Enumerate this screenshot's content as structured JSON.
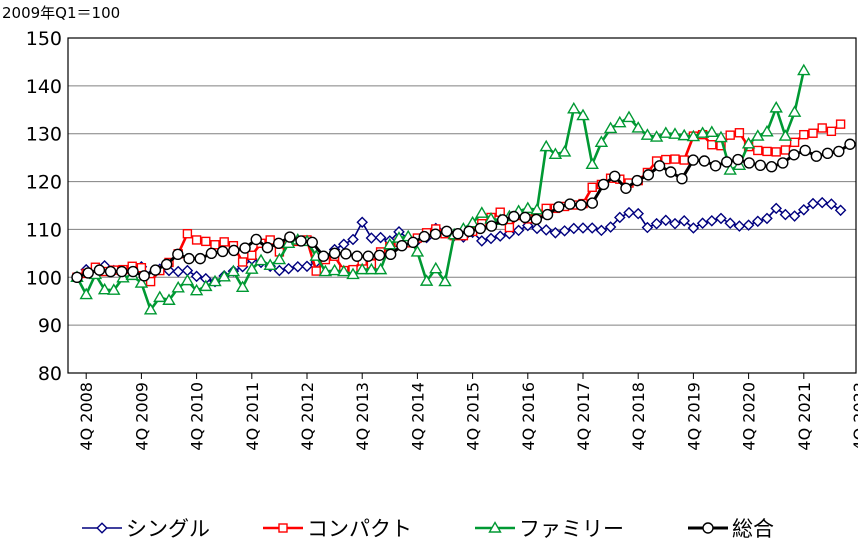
{
  "chart_data": {
    "type": "line",
    "unit_label": "2009年Q1＝100",
    "ylim": [
      80,
      150
    ],
    "yticks": [
      80,
      90,
      100,
      110,
      120,
      130,
      140,
      150
    ],
    "x_tick_labels": [
      "4Q 2008",
      "4Q 2009",
      "4Q 2010",
      "4Q 2011",
      "4Q 2012",
      "4Q 2013",
      "4Q 2014",
      "4Q 2015",
      "4Q 2016",
      "4Q 2017",
      "4Q 2018",
      "4Q 2019",
      "4Q 2020",
      "4Q 2021",
      "4Q 2022"
    ],
    "grid": "horizontal",
    "legend_position": "bottom",
    "series": [
      {
        "name": "シングル",
        "color": "#00007f",
        "marker": "diamond",
        "values": [
          100,
          101.6,
          101.3,
          102.4,
          101.4,
          101.2,
          101.6,
          102.2,
          100.4,
          101.7,
          101.4,
          101.2,
          101.4,
          100.2,
          99.7,
          99.1,
          100.3,
          101.3,
          102.2,
          103.8,
          103.1,
          102.3,
          101.4,
          101.8,
          102.2,
          102.3,
          103.2,
          104.3,
          105.8,
          106.9,
          107.9,
          111.5,
          108.2,
          108.3,
          107.6,
          109.5,
          108.1,
          107.7,
          108.3,
          110.2,
          109.5,
          108.7,
          108.4,
          109.4,
          107.6,
          108.1,
          108.6,
          109.1,
          109.8,
          110.8,
          110.2,
          109.9,
          109.3,
          109.7,
          110.2,
          110.3,
          110.3,
          109.8,
          110.5,
          112.5,
          113.5,
          113.3,
          110.4,
          111.2,
          111.9,
          111.2,
          111.8,
          110.3,
          111.3,
          111.8,
          112.3,
          111.3,
          110.7,
          110.9,
          111.7,
          112.3,
          114.4,
          113.1,
          112.8,
          114.1,
          115.4,
          115.6,
          115.3,
          114.0
        ]
      },
      {
        "name": "コンパクト",
        "color": "#ff0000",
        "marker": "square",
        "values": [
          100,
          100.8,
          102.1,
          101.2,
          101.5,
          101.6,
          102.3,
          102,
          99.1,
          101.4,
          103.1,
          104.9,
          109.1,
          107.8,
          107.5,
          106.8,
          107.4,
          106.6,
          103.2,
          104.6,
          107.1,
          107.8,
          105.3,
          107.1,
          107.5,
          107.8,
          101.3,
          103.7,
          104.4,
          101.4,
          101.6,
          103.4,
          102.8,
          105.3,
          106.4,
          107.3,
          107.2,
          108.2,
          109.3,
          110.1,
          109.1,
          108.7,
          108.7,
          109.6,
          111.2,
          112.5,
          113.6,
          110.4,
          112.9,
          112.2,
          113.2,
          114.4,
          114.4,
          114.8,
          115.1,
          115.4,
          118.8,
          119.4,
          120.7,
          120.5,
          119.7,
          120.2,
          121.9,
          124.3,
          124.6,
          124.7,
          124.5,
          129.5,
          129.8,
          127.7,
          127.5,
          129.7,
          130.2,
          127.3,
          126.5,
          126.3,
          126.2,
          126.6,
          128.2,
          129.8,
          130.1,
          131.2,
          130.5,
          132.0
        ]
      },
      {
        "name": "ファミリー",
        "color": "#009933",
        "marker": "triangle",
        "values": [
          100,
          96.4,
          100.6,
          97.4,
          97.3,
          99.9,
          100.4,
          98.8,
          93.2,
          95.8,
          95.2,
          97.8,
          99.3,
          97.2,
          98.1,
          99.1,
          100.1,
          101.2,
          97.9,
          101.7,
          103.5,
          102.5,
          103.7,
          107.1,
          107.8,
          107.5,
          104.4,
          101.2,
          101.4,
          101.2,
          100.6,
          101.6,
          101.6,
          101.6,
          106.8,
          108.2,
          108.5,
          105.3,
          99.2,
          101.8,
          99.1,
          108.9,
          110.1,
          111.4,
          113.4,
          112.2,
          111.9,
          112.7,
          113.8,
          114.4,
          114.1,
          127.3,
          125.7,
          126.2,
          135.2,
          133.8,
          123.6,
          128.2,
          131.1,
          132.3,
          133.4,
          131.2,
          129.7,
          129.3,
          130.1,
          129.9,
          129.6,
          129.4,
          130.1,
          130.3,
          129.2,
          122.4,
          123.4,
          127.9,
          129.5,
          130.4,
          135.4,
          129.5,
          134.5,
          143.2
        ]
      },
      {
        "name": "総合",
        "color": "#000000",
        "marker": "circle",
        "values": [
          100,
          100.9,
          101.5,
          101.2,
          101.2,
          101.2,
          100.3,
          101.5,
          102.7,
          104.8,
          103.9,
          103.9,
          105.0,
          105.4,
          105.6,
          106.1,
          107.9,
          106.2,
          107.1,
          108.4,
          107.6,
          107.3,
          104.4,
          105.0,
          104.9,
          104.4,
          104.4,
          104.6,
          104.8,
          106.6,
          107.3,
          108.5,
          109.0,
          109.6,
          109.1,
          109.6,
          110.2,
          110.7,
          112.0,
          112.7,
          112.5,
          112.1,
          113.1,
          114.7,
          115.3,
          115.1,
          115.5,
          119.4,
          121.1,
          118.6,
          120.2,
          121.4,
          123.3,
          122.0,
          120.6,
          124.5,
          124.3,
          123.3,
          124.1,
          124.6,
          123.9,
          123.4,
          123.1,
          123.9,
          125.6,
          126.5,
          125.3,
          125.9,
          126.3,
          127.8
        ]
      }
    ]
  }
}
